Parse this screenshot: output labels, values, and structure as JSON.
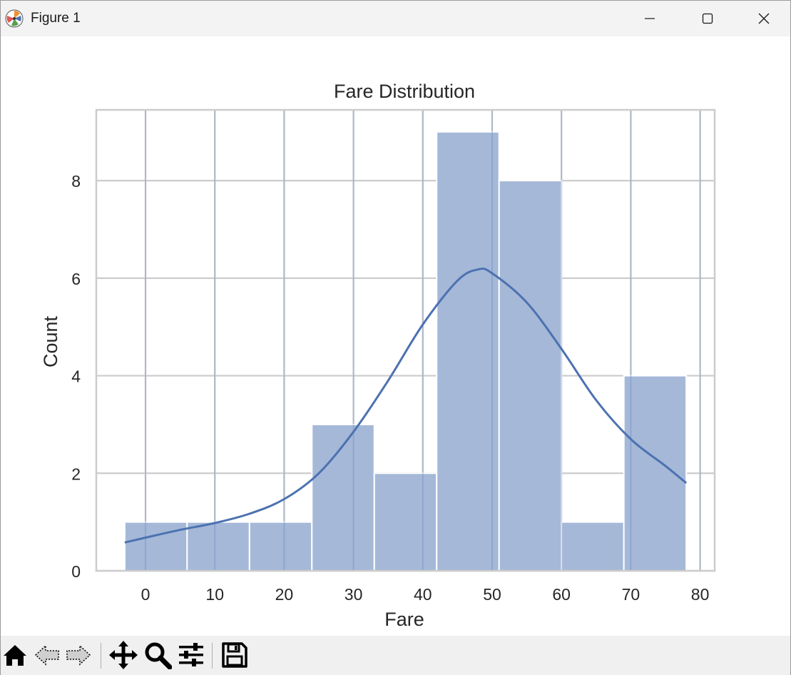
{
  "window": {
    "title": "Figure 1",
    "buttons": {
      "minimize": "minimize-icon",
      "maximize": "maximize-icon",
      "close": "close-icon"
    }
  },
  "toolbar": {
    "items": [
      "home-icon",
      "back-arrow-icon",
      "forward-arrow-icon",
      "pan-icon",
      "zoom-icon",
      "configure-subplots-icon",
      "save-icon"
    ]
  },
  "colors": {
    "bar_fill": "#a5b8d8",
    "kde_line": "#4c72b0",
    "grid": "#cccccc",
    "titlebar": "#f3f3f3",
    "toolbar": "#f0f0f0"
  },
  "chart_data": {
    "type": "bar",
    "title": "Fare Distribution",
    "xlabel": "Fare",
    "ylabel": "Count",
    "xlim": [
      -7.1,
      82.1
    ],
    "ylim": [
      0,
      9.45
    ],
    "xticks": [
      0,
      10,
      20,
      30,
      40,
      50,
      60,
      70,
      80
    ],
    "yticks": [
      0,
      2,
      4,
      6,
      8
    ],
    "grid": true,
    "bins": [
      {
        "x0": -3.0,
        "x1": 6.0,
        "count": 1
      },
      {
        "x0": 6.0,
        "x1": 15.0,
        "count": 1
      },
      {
        "x0": 15.0,
        "x1": 24.0,
        "count": 1
      },
      {
        "x0": 24.0,
        "x1": 33.0,
        "count": 3
      },
      {
        "x0": 33.0,
        "x1": 42.0,
        "count": 2
      },
      {
        "x0": 42.0,
        "x1": 51.0,
        "count": 9
      },
      {
        "x0": 51.0,
        "x1": 60.0,
        "count": 8
      },
      {
        "x0": 60.0,
        "x1": 69.0,
        "count": 1
      },
      {
        "x0": 69.0,
        "x1": 78.0,
        "count": 4
      }
    ],
    "kde": {
      "x": [
        -3,
        0,
        5,
        10,
        15,
        20,
        25,
        30,
        35,
        40,
        45,
        48,
        50,
        55,
        60,
        65,
        70,
        75,
        78
      ],
      "y": [
        0.58,
        0.68,
        0.84,
        0.98,
        1.17,
        1.47,
        2.0,
        2.85,
        3.9,
        5.05,
        5.95,
        6.18,
        6.1,
        5.5,
        4.55,
        3.5,
        2.7,
        2.15,
        1.8
      ]
    }
  }
}
